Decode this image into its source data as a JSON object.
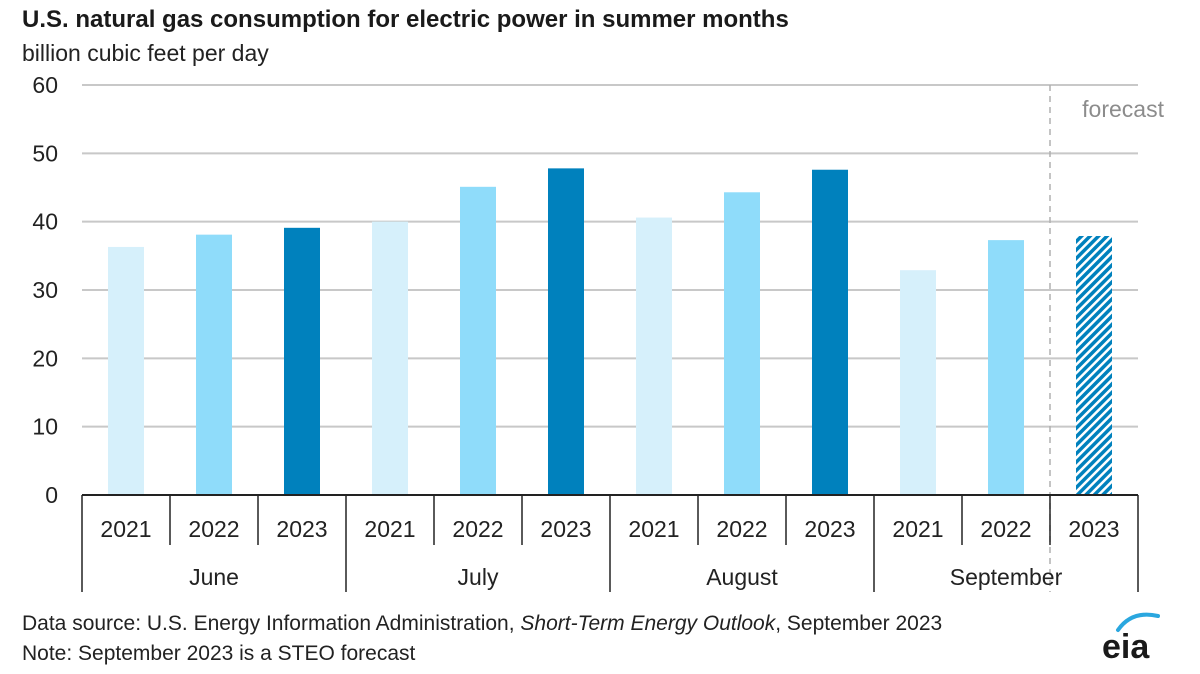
{
  "header": {
    "title": "U.S. natural gas consumption for electric power in summer months",
    "subtitle": "billion cubic feet per day"
  },
  "chart_data": {
    "type": "bar",
    "title": "U.S. natural gas consumption for electric power in summer months",
    "ylabel": "billion cubic feet per day",
    "ylim": [
      0,
      60
    ],
    "yticks": [
      "0",
      "10",
      "20",
      "30",
      "40",
      "50",
      "60"
    ],
    "grid": true,
    "groups": [
      "June",
      "July",
      "August",
      "September"
    ],
    "years": [
      "2021",
      "2022",
      "2023"
    ],
    "values": [
      [
        36.3,
        38.1,
        39.1
      ],
      [
        40.0,
        45.1,
        47.8
      ],
      [
        40.6,
        44.3,
        47.6
      ],
      [
        32.9,
        37.3,
        37.9
      ]
    ],
    "forecast": {
      "label": "forecast",
      "group": "September",
      "year": "2023"
    },
    "colors": {
      "2021": "#d6f0fb",
      "2022": "#8fdcfa",
      "2023": "#0081bd",
      "forecast_hatch": "#0081bd",
      "grid": "#c8c8c8",
      "forecast_line": "#b0b0b0",
      "forecast_text": "#8c8c8c"
    }
  },
  "footer": {
    "source_prefix": "Data source: U.S. Energy Information Administration,",
    "source_italic": "Short-Term Energy Outlook",
    "source_suffix": ", September 2023",
    "note": "Note: September 2023 is a STEO forecast"
  },
  "logo": {
    "text": "eia",
    "icon": "eia-logo-icon"
  }
}
